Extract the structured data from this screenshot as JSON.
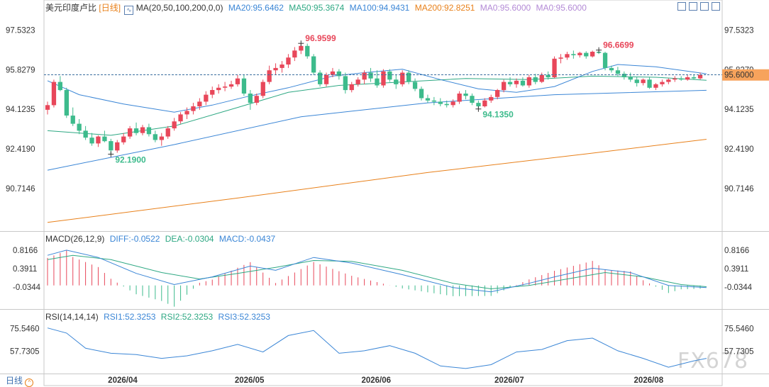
{
  "header": {
    "symbol": "美元印度卢比",
    "period": "[日线]",
    "ma_label": "MA(20,50,100,200,0,0)",
    "ma_values": [
      {
        "text": "MA20:95.6462",
        "color": "#3b86d6"
      },
      {
        "text": "MA50:95.3674",
        "color": "#2ea883"
      },
      {
        "text": "MA100:94.9431",
        "color": "#3b86d6"
      },
      {
        "text": "MA200:92.8251",
        "color": "#e8801a"
      },
      {
        "text": "MA0:95.6000",
        "color": "#b38ad6"
      },
      {
        "text": "MA0:95.6000",
        "color": "#b38ad6"
      }
    ]
  },
  "macd_header": {
    "label": "MACD(26,12,9)",
    "diff": "DIFF:-0.0522",
    "dea": "DEA:-0.0304",
    "macd": "MACD:-0.0437"
  },
  "rsi_header": {
    "label": "RSI(14,14,14)",
    "rsi1": "RSI1:52.3253",
    "rsi2": "RSI2:52.3253",
    "rsi3": "RSI3:52.3253"
  },
  "footer": {
    "period_button": "日线",
    "watermark": "FX678"
  },
  "colors": {
    "up": "#e8475a",
    "down": "#3dbb8c",
    "ma20": "#3b86d6",
    "ma50": "#2ea883",
    "ma100": "#3b86d6",
    "ma200": "#e8801a",
    "last_price_bg": "#f7a35c"
  },
  "chart_data": {
    "type": "candlestick",
    "price_axis_ticks": [
      "97.5323",
      "95.8279",
      "94.1235",
      "92.4190",
      "90.7146"
    ],
    "price_ylim": [
      89.0,
      98.4
    ],
    "last_price": "95.6000",
    "x_ticks": [
      "2026/04",
      "2026/05",
      "2026/06",
      "2026/07",
      "2026/08"
    ],
    "annotations": [
      {
        "text": "96.9599",
        "value": 96.9599,
        "kind": "high"
      },
      {
        "text": "96.6699",
        "value": 96.6699,
        "kind": "high"
      },
      {
        "text": "92.1900",
        "value": 92.19,
        "kind": "low"
      },
      {
        "text": "94.1350",
        "value": 94.135,
        "kind": "low"
      }
    ],
    "candles": [
      [
        94.1,
        94.45,
        93.9,
        94.3
      ],
      [
        94.3,
        95.4,
        94.2,
        95.3
      ],
      [
        95.3,
        95.55,
        94.9,
        94.95
      ],
      [
        94.95,
        95.05,
        93.75,
        93.85
      ],
      [
        93.85,
        94.2,
        93.4,
        93.5
      ],
      [
        93.5,
        93.7,
        93.05,
        93.2
      ],
      [
        93.2,
        93.4,
        92.8,
        92.9
      ],
      [
        92.9,
        93.1,
        92.55,
        92.65
      ],
      [
        92.65,
        93.0,
        92.5,
        92.95
      ],
      [
        92.95,
        93.2,
        92.7,
        92.75
      ],
      [
        92.75,
        92.85,
        92.19,
        92.35
      ],
      [
        92.35,
        92.8,
        92.25,
        92.7
      ],
      [
        92.7,
        93.1,
        92.6,
        92.95
      ],
      [
        92.95,
        93.4,
        92.85,
        93.3
      ],
      [
        93.3,
        93.55,
        93.0,
        93.1
      ],
      [
        93.1,
        93.45,
        93.0,
        93.35
      ],
      [
        93.35,
        93.5,
        92.95,
        93.05
      ],
      [
        93.05,
        93.2,
        92.7,
        92.8
      ],
      [
        92.8,
        93.1,
        92.55,
        92.95
      ],
      [
        92.95,
        93.4,
        92.85,
        93.3
      ],
      [
        93.3,
        93.75,
        93.2,
        93.6
      ],
      [
        93.6,
        94.0,
        93.5,
        93.9
      ],
      [
        93.9,
        94.2,
        93.7,
        94.05
      ],
      [
        94.05,
        94.4,
        93.9,
        94.25
      ],
      [
        94.25,
        94.6,
        94.1,
        94.45
      ],
      [
        94.45,
        94.9,
        94.3,
        94.75
      ],
      [
        94.75,
        95.1,
        94.6,
        94.95
      ],
      [
        94.95,
        95.2,
        94.8,
        95.05
      ],
      [
        95.05,
        95.3,
        94.9,
        95.1
      ],
      [
        95.1,
        95.35,
        95.0,
        95.2
      ],
      [
        95.2,
        95.6,
        95.1,
        95.45
      ],
      [
        95.45,
        95.6,
        94.7,
        94.8
      ],
      [
        94.8,
        94.95,
        94.1,
        94.4
      ],
      [
        94.4,
        94.8,
        94.3,
        94.7
      ],
      [
        94.7,
        95.4,
        94.6,
        95.3
      ],
      [
        95.3,
        96.0,
        95.2,
        95.8
      ],
      [
        95.8,
        96.1,
        95.6,
        95.9
      ],
      [
        95.9,
        96.2,
        95.7,
        96.05
      ],
      [
        96.05,
        96.5,
        95.9,
        96.35
      ],
      [
        96.35,
        96.8,
        96.2,
        96.65
      ],
      [
        96.65,
        96.96,
        96.5,
        96.85
      ],
      [
        96.85,
        96.95,
        96.3,
        96.4
      ],
      [
        96.4,
        96.5,
        95.6,
        95.7
      ],
      [
        95.7,
        95.8,
        95.1,
        95.2
      ],
      [
        95.2,
        95.7,
        95.1,
        95.6
      ],
      [
        95.6,
        95.9,
        95.5,
        95.75
      ],
      [
        95.75,
        95.85,
        95.4,
        95.55
      ],
      [
        95.55,
        95.7,
        94.8,
        94.95
      ],
      [
        94.95,
        95.3,
        94.85,
        95.2
      ],
      [
        95.2,
        95.5,
        95.1,
        95.4
      ],
      [
        95.4,
        95.8,
        95.2,
        95.7
      ],
      [
        95.7,
        95.9,
        95.3,
        95.45
      ],
      [
        95.45,
        95.8,
        95.05,
        95.15
      ],
      [
        95.15,
        95.85,
        95.05,
        95.75
      ],
      [
        95.75,
        95.85,
        95.3,
        95.4
      ],
      [
        95.4,
        95.6,
        95.0,
        95.2
      ],
      [
        95.2,
        95.8,
        95.1,
        95.7
      ],
      [
        95.7,
        95.8,
        95.2,
        95.3
      ],
      [
        95.3,
        95.45,
        94.9,
        95.0
      ],
      [
        95.0,
        95.1,
        94.5,
        94.6
      ],
      [
        94.6,
        94.75,
        94.4,
        94.5
      ],
      [
        94.5,
        94.65,
        94.3,
        94.45
      ],
      [
        94.45,
        94.6,
        94.25,
        94.35
      ],
      [
        94.35,
        94.5,
        94.2,
        94.3
      ],
      [
        94.3,
        94.55,
        94.2,
        94.45
      ],
      [
        94.45,
        94.9,
        94.35,
        94.8
      ],
      [
        94.8,
        94.95,
        94.55,
        94.7
      ],
      [
        94.7,
        94.8,
        94.3,
        94.4
      ],
      [
        94.4,
        94.5,
        94.135,
        94.25
      ],
      [
        94.25,
        94.6,
        94.2,
        94.5
      ],
      [
        94.5,
        94.75,
        94.4,
        94.65
      ],
      [
        94.65,
        95.0,
        94.55,
        94.95
      ],
      [
        94.95,
        95.4,
        94.85,
        95.3
      ],
      [
        95.3,
        95.5,
        95.1,
        95.2
      ],
      [
        95.2,
        95.45,
        95.05,
        95.35
      ],
      [
        95.35,
        95.5,
        95.1,
        95.15
      ],
      [
        95.15,
        95.6,
        95.05,
        95.5
      ],
      [
        95.5,
        95.65,
        95.2,
        95.3
      ],
      [
        95.3,
        95.7,
        95.25,
        95.6
      ],
      [
        95.6,
        95.75,
        95.4,
        95.5
      ],
      [
        95.5,
        96.4,
        95.45,
        96.3
      ],
      [
        96.3,
        96.5,
        96.1,
        96.35
      ],
      [
        96.35,
        96.6,
        96.25,
        96.5
      ],
      [
        96.5,
        96.65,
        96.3,
        96.45
      ],
      [
        96.45,
        96.6,
        96.35,
        96.55
      ],
      [
        96.55,
        96.62,
        96.3,
        96.4
      ],
      [
        96.4,
        96.65,
        96.35,
        96.6
      ],
      [
        96.6,
        96.67,
        96.5,
        96.55
      ],
      [
        96.55,
        96.6,
        95.8,
        95.9
      ],
      [
        95.9,
        96.0,
        95.7,
        95.8
      ],
      [
        95.8,
        95.95,
        95.55,
        95.65
      ],
      [
        95.65,
        95.75,
        95.4,
        95.5
      ],
      [
        95.5,
        95.7,
        95.3,
        95.4
      ],
      [
        95.4,
        95.5,
        95.1,
        95.25
      ],
      [
        95.25,
        95.45,
        95.15,
        95.4
      ],
      [
        95.4,
        95.5,
        95.0,
        95.05
      ],
      [
        95.05,
        95.25,
        94.95,
        95.2
      ],
      [
        95.2,
        95.4,
        95.1,
        95.3
      ],
      [
        95.3,
        95.45,
        95.2,
        95.4
      ],
      [
        95.4,
        95.55,
        95.3,
        95.45
      ],
      [
        95.45,
        95.55,
        95.35,
        95.4
      ],
      [
        95.4,
        95.6,
        95.35,
        95.5
      ],
      [
        95.5,
        95.62,
        95.4,
        95.45
      ],
      [
        95.45,
        95.7,
        95.4,
        95.6
      ]
    ],
    "ma20": [
      [
        0,
        95.35
      ],
      [
        5,
        94.75
      ],
      [
        12,
        94.35
      ],
      [
        20,
        94.0
      ],
      [
        26,
        94.3
      ],
      [
        32,
        94.7
      ],
      [
        38,
        95.05
      ],
      [
        45,
        95.55
      ],
      [
        50,
        95.7
      ],
      [
        56,
        95.85
      ],
      [
        62,
        95.4
      ],
      [
        68,
        95.0
      ],
      [
        74,
        94.85
      ],
      [
        80,
        95.1
      ],
      [
        86,
        95.75
      ],
      [
        90,
        96.05
      ],
      [
        96,
        95.95
      ],
      [
        104,
        95.65
      ]
    ],
    "ma50": [
      [
        0,
        93.2
      ],
      [
        10,
        93.0
      ],
      [
        20,
        93.4
      ],
      [
        30,
        94.2
      ],
      [
        38,
        94.85
      ],
      [
        46,
        95.15
      ],
      [
        56,
        95.3
      ],
      [
        66,
        95.45
      ],
      [
        76,
        95.4
      ],
      [
        86,
        95.55
      ],
      [
        96,
        95.5
      ],
      [
        104,
        95.37
      ]
    ],
    "ma100": [
      [
        0,
        91.5
      ],
      [
        20,
        92.6
      ],
      [
        40,
        93.8
      ],
      [
        60,
        94.4
      ],
      [
        80,
        94.75
      ],
      [
        104,
        94.94
      ]
    ],
    "ma200": [
      [
        0,
        89.25
      ],
      [
        30,
        90.3
      ],
      [
        60,
        91.4
      ],
      [
        85,
        92.2
      ],
      [
        104,
        92.83
      ]
    ],
    "macd_ticks": [
      "0.8166",
      "0.3911",
      "-0.0344"
    ],
    "macd_ylim": [
      -0.45,
      1.0
    ],
    "macd_diff": [
      [
        0,
        0.7
      ],
      [
        3,
        0.82
      ],
      [
        8,
        0.65
      ],
      [
        14,
        0.28
      ],
      [
        20,
        0.02
      ],
      [
        26,
        0.2
      ],
      [
        32,
        0.45
      ],
      [
        36,
        0.35
      ],
      [
        42,
        0.65
      ],
      [
        48,
        0.52
      ],
      [
        56,
        0.25
      ],
      [
        64,
        -0.05
      ],
      [
        70,
        -0.15
      ],
      [
        76,
        0.05
      ],
      [
        80,
        0.2
      ],
      [
        86,
        0.4
      ],
      [
        92,
        0.3
      ],
      [
        98,
        0.0
      ],
      [
        104,
        -0.05
      ]
    ],
    "macd_dea": [
      [
        0,
        0.6
      ],
      [
        4,
        0.7
      ],
      [
        10,
        0.6
      ],
      [
        18,
        0.3
      ],
      [
        24,
        0.15
      ],
      [
        30,
        0.28
      ],
      [
        36,
        0.42
      ],
      [
        42,
        0.58
      ],
      [
        48,
        0.56
      ],
      [
        56,
        0.35
      ],
      [
        64,
        0.05
      ],
      [
        70,
        -0.08
      ],
      [
        76,
        0.0
      ],
      [
        82,
        0.15
      ],
      [
        88,
        0.3
      ],
      [
        94,
        0.2
      ],
      [
        100,
        0.02
      ],
      [
        104,
        -0.03
      ]
    ],
    "rsi_ticks": [
      "75.5460",
      "57.7305"
    ],
    "rsi_ylim": [
      40,
      82
    ],
    "rsi": [
      [
        0,
        76
      ],
      [
        3,
        72
      ],
      [
        6,
        60
      ],
      [
        10,
        56
      ],
      [
        14,
        55
      ],
      [
        18,
        52
      ],
      [
        22,
        54
      ],
      [
        26,
        58
      ],
      [
        30,
        63
      ],
      [
        34,
        57
      ],
      [
        38,
        70
      ],
      [
        42,
        74
      ],
      [
        46,
        56
      ],
      [
        50,
        58
      ],
      [
        54,
        62
      ],
      [
        58,
        56
      ],
      [
        62,
        46
      ],
      [
        66,
        44
      ],
      [
        70,
        47
      ],
      [
        74,
        57
      ],
      [
        78,
        59
      ],
      [
        82,
        66
      ],
      [
        86,
        68
      ],
      [
        90,
        58
      ],
      [
        94,
        52
      ],
      [
        98,
        45
      ],
      [
        102,
        50
      ],
      [
        104,
        52
      ]
    ]
  }
}
